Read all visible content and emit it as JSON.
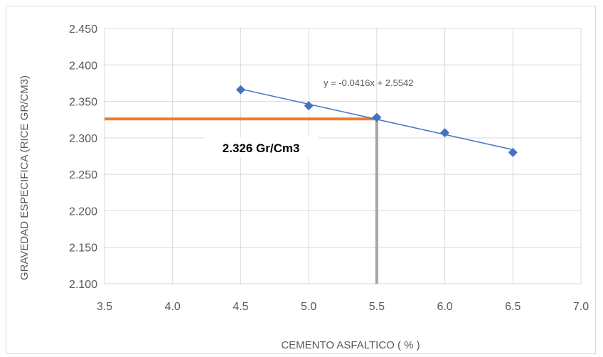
{
  "chart_data": {
    "type": "scatter",
    "title": "",
    "xlabel": "CEMENTO ASFALTICO ( % )",
    "ylabel": "GRAVEDAD ESPECIFICA (RICE GR/CM3)",
    "xlim": [
      3.5,
      7.0
    ],
    "ylim": [
      2.1,
      2.45
    ],
    "x_ticks": [
      3.5,
      4.0,
      4.5,
      5.0,
      5.5,
      6.0,
      6.5,
      7.0
    ],
    "y_ticks": [
      2.1,
      2.15,
      2.2,
      2.25,
      2.3,
      2.35,
      2.4,
      2.45
    ],
    "x_tick_labels": [
      "3.5",
      "4.0",
      "4.5",
      "5.0",
      "5.5",
      "6.0",
      "6.5",
      "7.0"
    ],
    "y_tick_labels": [
      "2.100",
      "2.150",
      "2.200",
      "2.250",
      "2.300",
      "2.350",
      "2.400",
      "2.450"
    ],
    "grid": true,
    "legend": "none",
    "series": [
      {
        "x": [
          4.5,
          5.0,
          5.5,
          6.0,
          6.5
        ],
        "y": [
          2.366,
          2.344,
          2.328,
          2.307,
          2.28
        ],
        "color": "#4472c4",
        "marker": "diamond"
      }
    ],
    "trendline": {
      "slope": -0.0416,
      "intercept": 2.5542,
      "x_range": [
        4.5,
        6.5
      ],
      "color": "#4472c4",
      "equation_label": "y = -0.0416x + 2.5542"
    },
    "reference_lines": {
      "horizontal": {
        "y": 2.326,
        "x_range": [
          3.5,
          5.5
        ],
        "color": "#ed7d31"
      },
      "vertical": {
        "x": 5.5,
        "y_range": [
          2.1,
          2.326
        ],
        "color": "#a5a5a5"
      }
    },
    "annotation": {
      "text": "2.326 Gr/Cm3",
      "x": 4.65,
      "y": 2.265
    }
  }
}
